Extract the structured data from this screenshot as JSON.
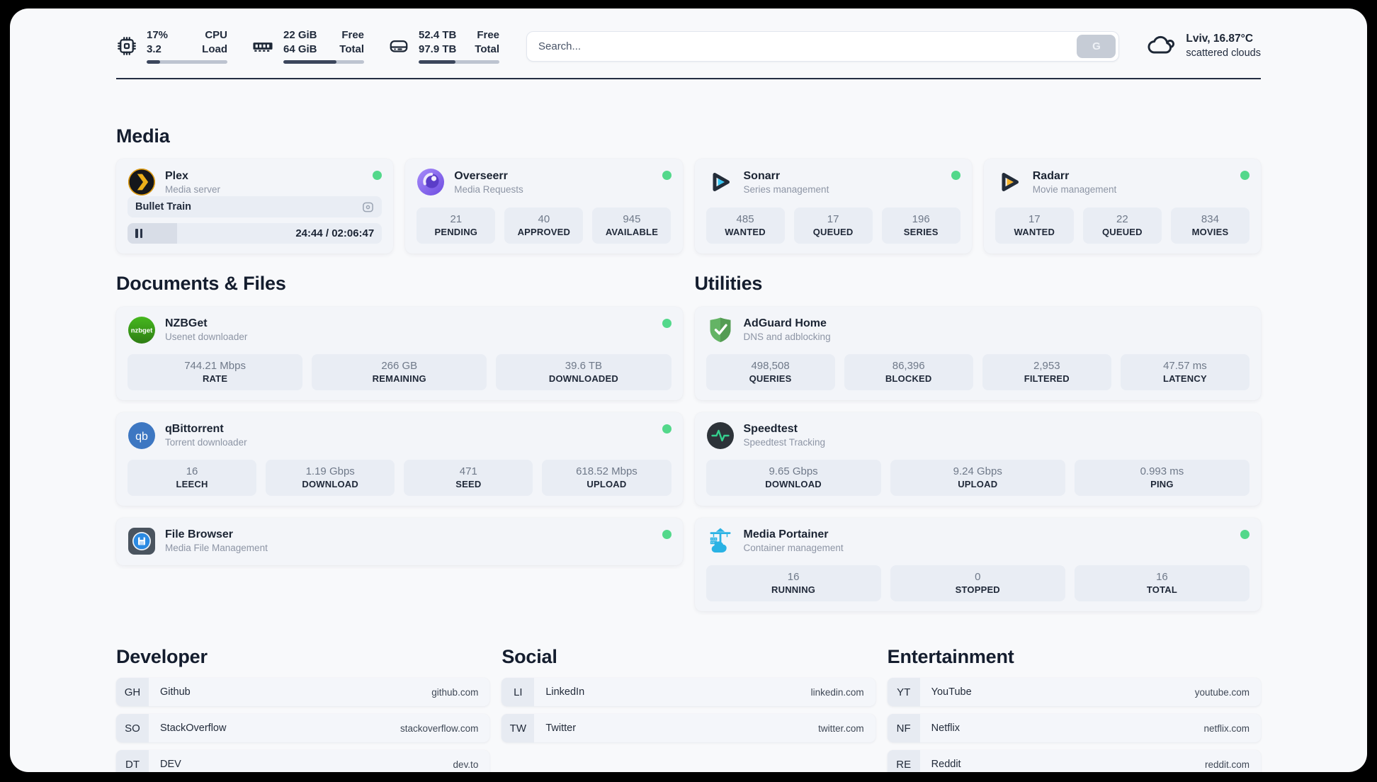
{
  "header": {
    "monitors": [
      {
        "name": "cpu",
        "icon": "cpu-icon",
        "top_value": "17%",
        "bottom_value": "3.2",
        "top_label": "CPU",
        "bottom_label": "Load",
        "used_pct": 17
      },
      {
        "name": "memory",
        "icon": "ram-icon",
        "top_value": "22 GiB",
        "bottom_value": "64 GiB",
        "top_label": "Free",
        "bottom_label": "Total",
        "used_pct": 66
      },
      {
        "name": "storage",
        "icon": "disk-icon",
        "top_value": "52.4 TB",
        "bottom_value": "97.9 TB",
        "top_label": "Free",
        "bottom_label": "Total",
        "used_pct": 46
      }
    ],
    "search": {
      "placeholder": "Search...",
      "button_label": "G"
    },
    "weather": {
      "icon": "cloud-icon",
      "location_temp": "Lviv, 16.87°C",
      "condition": "scattered clouds"
    }
  },
  "sections": {
    "media": {
      "title": "Media",
      "apps": [
        {
          "name": "Plex",
          "description": "Media server",
          "icon": "plex-icon",
          "online": true,
          "now_playing": {
            "title": "Bullet Train",
            "time": "24:44 / 02:06:47",
            "progress_pct": 19.5
          }
        },
        {
          "name": "Overseerr",
          "description": "Media Requests",
          "icon": "overseerr-icon",
          "online": true,
          "stats": [
            {
              "value": "21",
              "label": "PENDING"
            },
            {
              "value": "40",
              "label": "APPROVED"
            },
            {
              "value": "945",
              "label": "AVAILABLE"
            }
          ]
        },
        {
          "name": "Sonarr",
          "description": "Series management",
          "icon": "sonarr-icon",
          "online": true,
          "stats": [
            {
              "value": "485",
              "label": "WANTED"
            },
            {
              "value": "17",
              "label": "QUEUED"
            },
            {
              "value": "196",
              "label": "SERIES"
            }
          ]
        },
        {
          "name": "Radarr",
          "description": "Movie management",
          "icon": "radarr-icon",
          "online": true,
          "stats": [
            {
              "value": "17",
              "label": "WANTED"
            },
            {
              "value": "22",
              "label": "QUEUED"
            },
            {
              "value": "834",
              "label": "MOVIES"
            }
          ]
        }
      ]
    },
    "documents": {
      "title": "Documents & Files",
      "apps": [
        {
          "name": "NZBGet",
          "description": "Usenet downloader",
          "icon": "nzbget-icon",
          "online": true,
          "stats": [
            {
              "value": "744.21 Mbps",
              "label": "RATE"
            },
            {
              "value": "266 GB",
              "label": "REMAINING"
            },
            {
              "value": "39.6 TB",
              "label": "DOWNLOADED"
            }
          ]
        },
        {
          "name": "qBittorrent",
          "description": "Torrent downloader",
          "icon": "qbittorrent-icon",
          "online": true,
          "stats": [
            {
              "value": "16",
              "label": "LEECH"
            },
            {
              "value": "1.19 Gbps",
              "label": "DOWNLOAD"
            },
            {
              "value": "471",
              "label": "SEED"
            },
            {
              "value": "618.52 Mbps",
              "label": "UPLOAD"
            }
          ]
        },
        {
          "name": "File Browser",
          "description": "Media File Management",
          "icon": "filebrowser-icon",
          "online": true
        }
      ]
    },
    "utilities": {
      "title": "Utilities",
      "apps": [
        {
          "name": "AdGuard Home",
          "description": "DNS and adblocking",
          "icon": "adguard-icon",
          "online": false,
          "stats": [
            {
              "value": "498,508",
              "label": "QUERIES"
            },
            {
              "value": "86,396",
              "label": "BLOCKED"
            },
            {
              "value": "2,953",
              "label": "FILTERED"
            },
            {
              "value": "47.57 ms",
              "label": "LATENCY"
            }
          ]
        },
        {
          "name": "Speedtest",
          "description": "Speedtest Tracking",
          "icon": "speedtest-icon",
          "online": false,
          "stats": [
            {
              "value": "9.65 Gbps",
              "label": "DOWNLOAD"
            },
            {
              "value": "9.24 Gbps",
              "label": "UPLOAD"
            },
            {
              "value": "0.993 ms",
              "label": "PING"
            }
          ]
        },
        {
          "name": "Media Portainer",
          "description": "Container management",
          "icon": "portainer-icon",
          "online": true,
          "stats": [
            {
              "value": "16",
              "label": "RUNNING"
            },
            {
              "value": "0",
              "label": "STOPPED"
            },
            {
              "value": "16",
              "label": "TOTAL"
            }
          ]
        }
      ]
    }
  },
  "link_groups": [
    {
      "title": "Developer",
      "links": [
        {
          "badge": "GH",
          "name": "Github",
          "url": "github.com"
        },
        {
          "badge": "SO",
          "name": "StackOverflow",
          "url": "stackoverflow.com"
        },
        {
          "badge": "DT",
          "name": "DEV",
          "url": "dev.to"
        }
      ]
    },
    {
      "title": "Social",
      "links": [
        {
          "badge": "LI",
          "name": "LinkedIn",
          "url": "linkedin.com"
        },
        {
          "badge": "TW",
          "name": "Twitter",
          "url": "twitter.com"
        }
      ]
    },
    {
      "title": "Entertainment",
      "links": [
        {
          "badge": "YT",
          "name": "YouTube",
          "url": "youtube.com"
        },
        {
          "badge": "NF",
          "name": "Netflix",
          "url": "netflix.com"
        },
        {
          "badge": "RE",
          "name": "Reddit",
          "url": "reddit.com"
        }
      ]
    }
  ],
  "colors": {
    "status_online": "#53d88b",
    "progress_fill": "#3b465c",
    "page_background": "#f8f9fb",
    "card_background": "#f3f5f9",
    "stat_background": "#e9edf4"
  }
}
